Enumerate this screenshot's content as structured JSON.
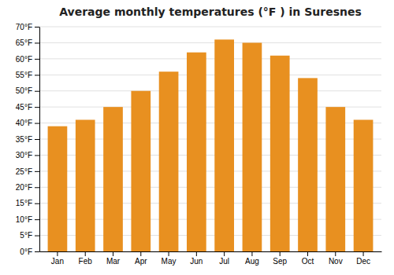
{
  "chart_data": {
    "type": "bar",
    "title": "Average monthly temperatures (°F ) in Suresnes",
    "categories": [
      "Jan",
      "Feb",
      "Mar",
      "Apr",
      "May",
      "Jun",
      "Jul",
      "Aug",
      "Sep",
      "Oct",
      "Nov",
      "Dec"
    ],
    "values": [
      39,
      41,
      45,
      50,
      56,
      62,
      66,
      65,
      61,
      54,
      45,
      41
    ],
    "color": "#E89020",
    "ylim": [
      0,
      70
    ],
    "yticks": [
      {
        "value": 0,
        "label": "0°F"
      },
      {
        "value": 5,
        "label": "5°F"
      },
      {
        "value": 10,
        "label": "10°F"
      },
      {
        "value": 15,
        "label": "15°F"
      },
      {
        "value": 20,
        "label": "20°F"
      },
      {
        "value": 25,
        "label": "25°F"
      },
      {
        "value": 30,
        "label": "30°F"
      },
      {
        "value": 35,
        "label": "35°F"
      },
      {
        "value": 40,
        "label": "40°F"
      },
      {
        "value": 45,
        "label": "45°F"
      },
      {
        "value": 50,
        "label": "50°F"
      },
      {
        "value": 55,
        "label": "55°F"
      },
      {
        "value": 60,
        "label": "60°F"
      },
      {
        "value": 65,
        "label": "65°F"
      },
      {
        "value": 70,
        "label": "70°F"
      }
    ],
    "grid": true
  }
}
